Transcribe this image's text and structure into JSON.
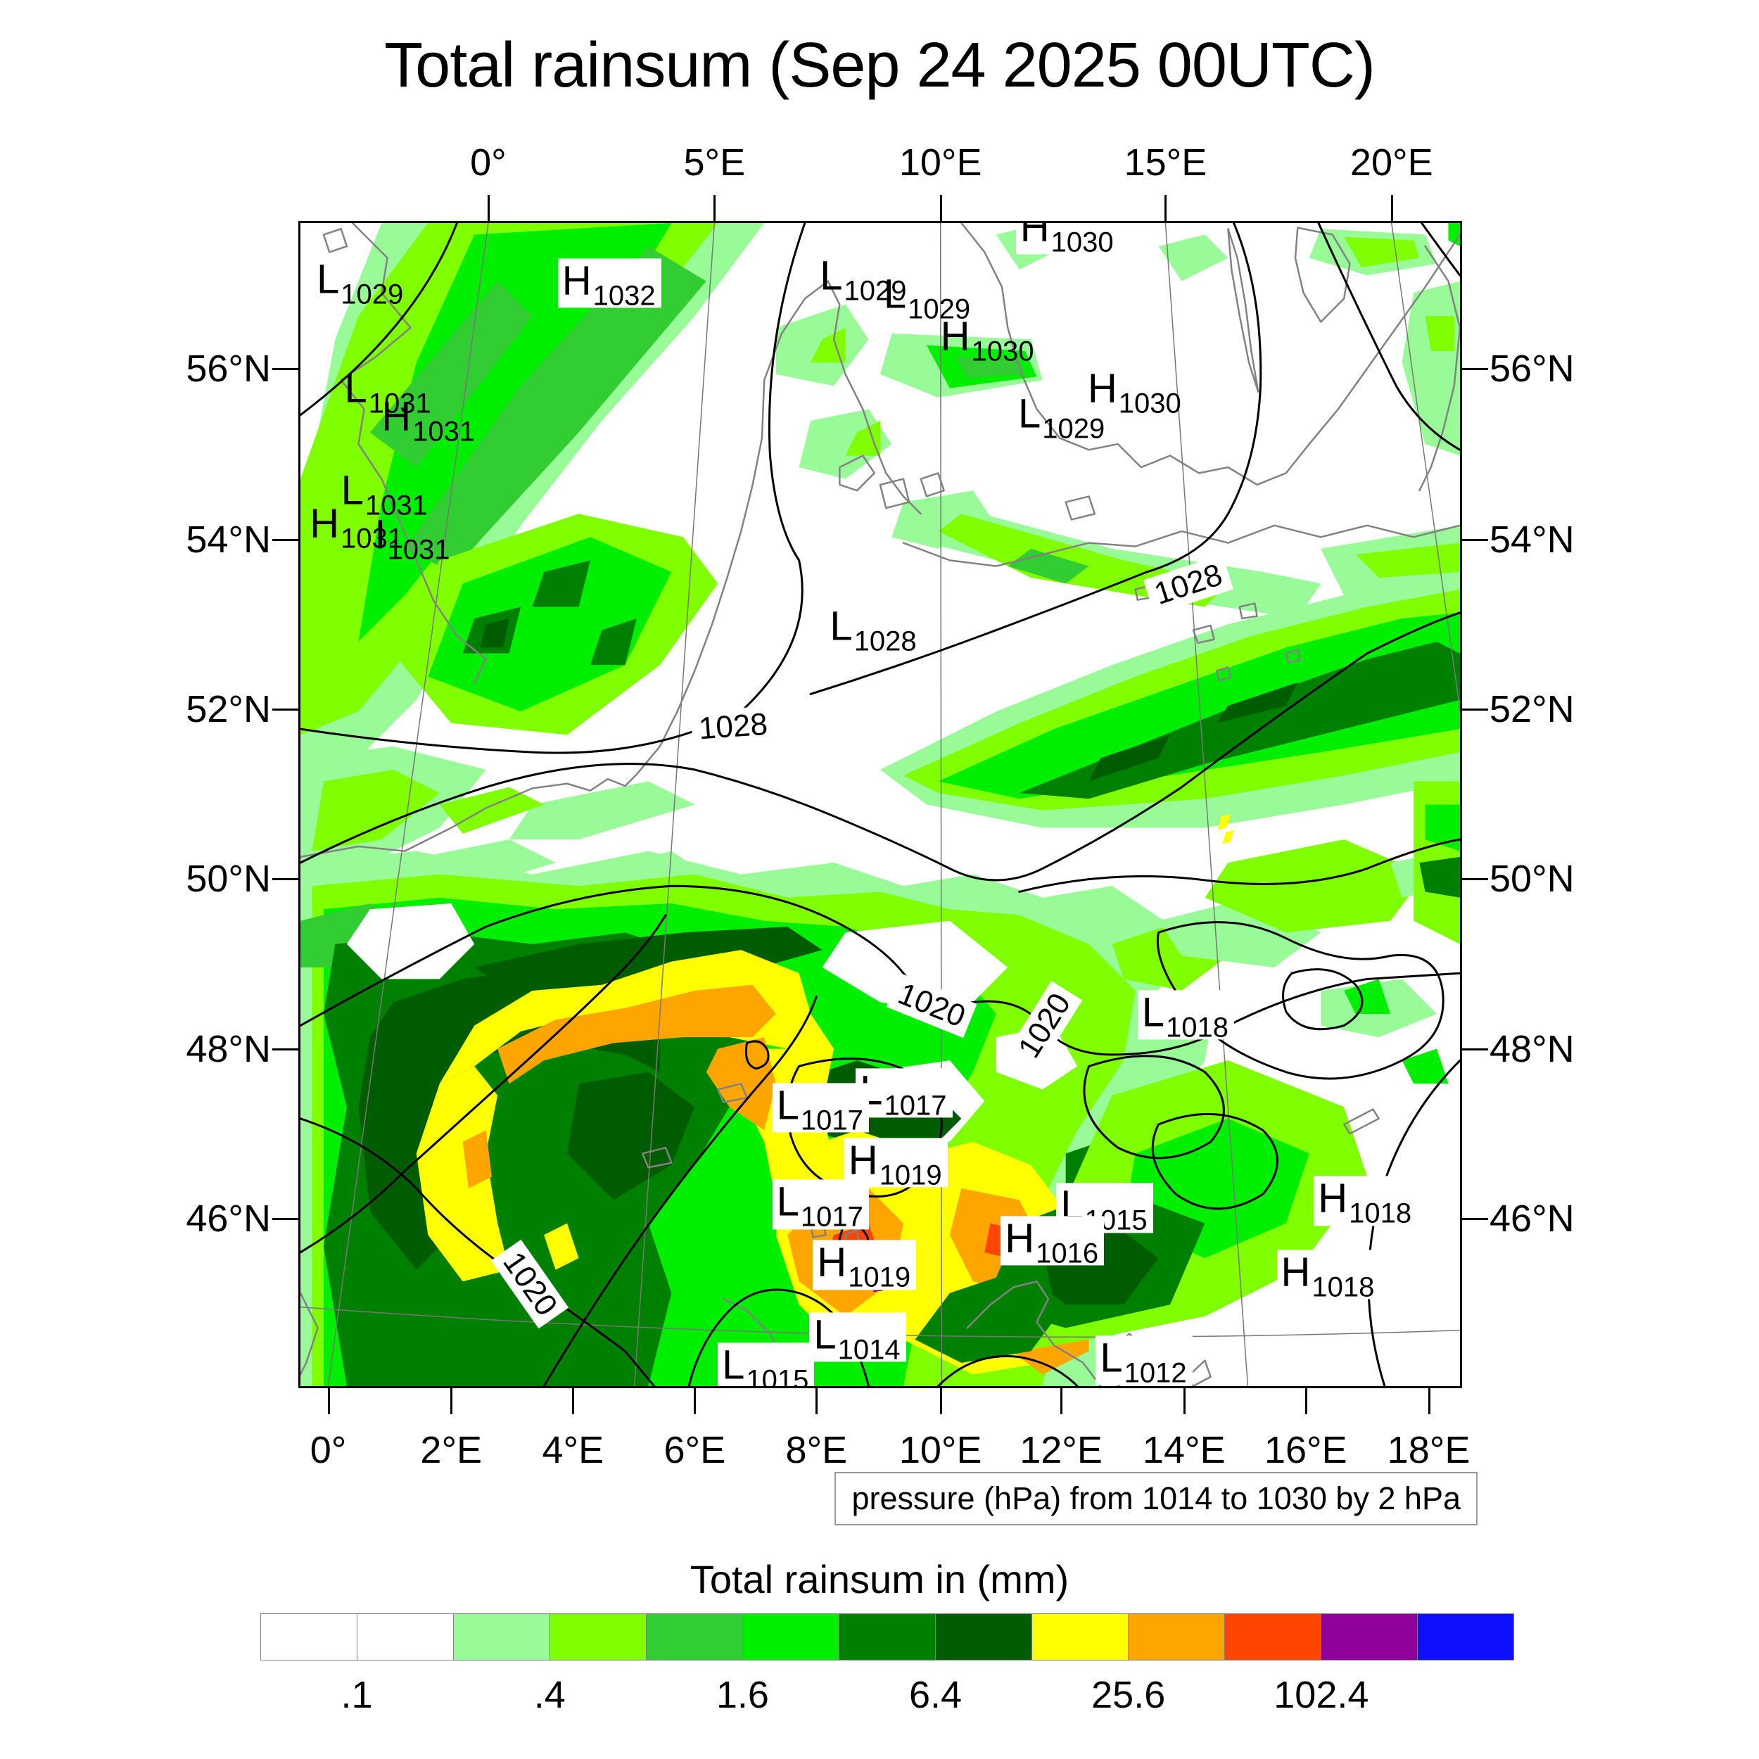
{
  "title": "Total rainsum (Sep 24 2025 00UTC)",
  "caption": "pressure (hPa) from 1014 to 1030 by 2 hPa",
  "legend": {
    "title": "Total rainsum in (mm)",
    "colors": [
      "#FFFFFF",
      "#FFFFFF",
      "#98FB98",
      "#7FFF00",
      "#32CD32",
      "#00EE00",
      "#008000",
      "#005C00",
      "#FFFF00",
      "#FFA500",
      "#FF4500",
      "#90009A",
      "#0F0FFF"
    ],
    "ticks": [
      {
        "label": ".1",
        "boundary": 1
      },
      {
        "label": ".4",
        "boundary": 3
      },
      {
        "label": "1.6",
        "boundary": 5
      },
      {
        "label": "6.4",
        "boundary": 7
      },
      {
        "label": "25.6",
        "boundary": 9
      },
      {
        "label": "102.4",
        "boundary": 11
      }
    ]
  },
  "axes": {
    "top": [
      {
        "label": "0°",
        "f": 16.2
      },
      {
        "label": "5°E",
        "f": 35.7
      },
      {
        "label": "10°E",
        "f": 55.2
      },
      {
        "label": "15°E",
        "f": 74.6
      },
      {
        "label": "20°E",
        "f": 94.1
      }
    ],
    "bottom": [
      {
        "label": "0°",
        "f": 2.4
      },
      {
        "label": "2°E",
        "f": 13.0
      },
      {
        "label": "4°E",
        "f": 23.5
      },
      {
        "label": "6°E",
        "f": 34.0
      },
      {
        "label": "8°E",
        "f": 44.5
      },
      {
        "label": "10°E",
        "f": 55.2
      },
      {
        "label": "12°E",
        "f": 65.6
      },
      {
        "label": "14°E",
        "f": 76.2
      },
      {
        "label": "16°E",
        "f": 86.7
      },
      {
        "label": "18°E",
        "f": 97.3
      }
    ],
    "left": [
      {
        "label": "56°N",
        "f": 12.5
      },
      {
        "label": "54°N",
        "f": 27.2
      },
      {
        "label": "52°N",
        "f": 41.8
      },
      {
        "label": "50°N",
        "f": 56.4
      },
      {
        "label": "48°N",
        "f": 71.0
      },
      {
        "label": "46°N",
        "f": 85.6
      }
    ],
    "right": [
      {
        "label": "56°N",
        "f": 12.5
      },
      {
        "label": "54°N",
        "f": 27.2
      },
      {
        "label": "52°N",
        "f": 41.8
      },
      {
        "label": "50°N",
        "f": 56.4
      },
      {
        "label": "48°N",
        "f": 71.0
      },
      {
        "label": "46°N",
        "f": 85.6
      }
    ]
  },
  "chart_data": {
    "type": "heatmap",
    "variable": "Total rainsum",
    "units": "mm",
    "valid_time": "Sep 24 2025 00UTC",
    "colorbar_thresholds_mm": [
      0.1,
      0.2,
      0.4,
      0.8,
      1.6,
      3.2,
      6.4,
      12.8,
      25.6,
      51.2,
      102.4,
      204.8
    ],
    "labeled_thresholds_mm": [
      0.1,
      0.4,
      1.6,
      6.4,
      25.6,
      102.4
    ],
    "pressure_overlay": {
      "units": "hPa",
      "from": 1014,
      "to": 1030,
      "step": 2
    },
    "lon_ticks_top": [
      "0°",
      "5°E",
      "10°E",
      "15°E",
      "20°E"
    ],
    "lon_ticks_bottom": [
      "0°",
      "2°E",
      "4°E",
      "6°E",
      "8°E",
      "10°E",
      "12°E",
      "14°E",
      "16°E",
      "18°E"
    ],
    "lat_ticks": [
      "56°N",
      "54°N",
      "52°N",
      "50°N",
      "48°N",
      "46°N"
    ],
    "pressure_centers": [
      {
        "t": "L",
        "v": "1029",
        "x": 2.0,
        "y": 5.0,
        "b": false
      },
      {
        "t": "H",
        "v": "1032",
        "x": 22.8,
        "y": 5.4,
        "b": true
      },
      {
        "t": "L",
        "v": "1031",
        "x": 4.4,
        "y": 14.4,
        "b": false
      },
      {
        "t": "H",
        "v": "1031",
        "x": 7.6,
        "y": 16.8,
        "b": false
      },
      {
        "t": "L",
        "v": "1031",
        "x": 4.1,
        "y": 23.2,
        "b": false
      },
      {
        "t": "H",
        "v": "1031",
        "x": 1.4,
        "y": 26.0,
        "b": false
      },
      {
        "t": "I",
        "v": "1031",
        "x": 7.0,
        "y": 27.0,
        "b": false
      },
      {
        "t": "L",
        "v": "1029",
        "x": 45.4,
        "y": 4.7,
        "b": false
      },
      {
        "t": "L",
        "v": "1029",
        "x": 50.9,
        "y": 6.3,
        "b": false
      },
      {
        "t": "H",
        "v": "1030",
        "x": 62.3,
        "y": 0.8,
        "b": true
      },
      {
        "t": "H",
        "v": "1030",
        "x": 55.8,
        "y": 9.9,
        "b": false
      },
      {
        "t": "H",
        "v": "1030",
        "x": 68.5,
        "y": 14.4,
        "b": false
      },
      {
        "t": "L",
        "v": "1029",
        "x": 62.5,
        "y": 16.6,
        "b": false
      },
      {
        "t": "L",
        "v": "1028",
        "x": 45.9,
        "y": 35.1,
        "b": true
      },
      {
        "t": "L",
        "v": "1018",
        "x": 72.8,
        "y": 68.3,
        "b": true
      },
      {
        "t": "L",
        "v": "1017",
        "x": 48.5,
        "y": 75.0,
        "b": true
      },
      {
        "t": "L",
        "v": "1017",
        "x": 41.3,
        "y": 76.3,
        "b": true
      },
      {
        "t": "H",
        "v": "1019",
        "x": 47.5,
        "y": 81.0,
        "b": true
      },
      {
        "t": "L",
        "v": "1017",
        "x": 41.3,
        "y": 84.6,
        "b": true
      },
      {
        "t": "L",
        "v": "1015",
        "x": 65.8,
        "y": 84.9,
        "b": true
      },
      {
        "t": "H",
        "v": "1016",
        "x": 61.0,
        "y": 87.7,
        "b": true
      },
      {
        "t": "H",
        "v": "1018",
        "x": 88.0,
        "y": 84.3,
        "b": true
      },
      {
        "t": "H",
        "v": "1018",
        "x": 84.8,
        "y": 90.6,
        "b": true
      },
      {
        "t": "H",
        "v": "1019",
        "x": 44.8,
        "y": 89.8,
        "b": true
      },
      {
        "t": "L",
        "v": "1014",
        "x": 44.5,
        "y": 96.0,
        "b": true
      },
      {
        "t": "L",
        "v": "1015",
        "x": 36.6,
        "y": 98.6,
        "b": true
      },
      {
        "t": "L",
        "v": "1012",
        "x": 69.2,
        "y": 98.0,
        "b": true
      }
    ],
    "contour_line_labels": [
      {
        "text": "1028",
        "x": 37.3,
        "y": 43.3,
        "rot": -4
      },
      {
        "text": "1028",
        "x": 76.6,
        "y": 31.1,
        "rot": -18
      },
      {
        "text": "1020",
        "x": 54.4,
        "y": 67.3,
        "rot": 22
      },
      {
        "text": "1020",
        "x": 64.2,
        "y": 69.0,
        "rot": -58
      },
      {
        "text": "1020",
        "x": 19.8,
        "y": 91.2,
        "rot": 55
      }
    ]
  },
  "map_geometry": {
    "graticule_meridians": [
      [
        16.2,
        0,
        2.4,
        100
      ],
      [
        35.7,
        0,
        28.8,
        100
      ],
      [
        55.2,
        0,
        55.3,
        100
      ],
      [
        74.6,
        0,
        81.7,
        100
      ],
      [
        94.1,
        0,
        108.2,
        100
      ]
    ],
    "graticule_parallels": [
      "M0,93.2 Q50,97 100,95.2"
    ],
    "coastlines": [
      "M4.5,0 L7.5,3 L7,6 L9.5,9 L6.5,11.5 L3.5,13.5 L5.5,16 L5,19 L7,22 L8.5,25.5 L10,29 L11.5,32.5 L13.5,35.5 L16,37.5 L15,39.5",
      "M2,1 L3.5,0.5 L4,2 L2.5,2.5 Z",
      "M0,54.5 L5,53.6 L9,54 L13,52 L16,50.3 L20,48.6 L23,48.2 L25,48.8 L26.5,47.8 L28,48.4 L29,47.4 L31,45 L32.5,42 L34,38.5 L35.5,34.5 L36.8,30.5 L38,26.5 L39,22.5 L39.8,18.5 L40,13.5 L41.5,9.5 L43.5,6.5 L45.5,5 L46.5,7 L46,10 L47,13 L48.5,16 L49.5,19 L50.5,21.5 L52,23.5 L53.5,25",
      "M52,27.5 L56,29 L60,29.5 L64,28.5 L68,27.5 L72,27.8 L76,26.5 L80,27.5 L84,26 L88,27 L92,26 L96,27 L100,26",
      "M57,0 L59,2.5 L60.5,5.5 L61,9 L62,12.5 L63.5,16 L65.5,18.5 L68,19.5 L70.5,19 L72.5,21 L75,20 L77.5,21.5 L80,21 L82.5,22.5 L85,21.5 L87,19 L89.5,16 L92,12.5 L94.5,9 L97,5.5 L99,2.5 L100,1",
      "M80,0.5 L80.8,3 L81.5,7 L82,11 L82.6,14.5 L81.8,12 L81,8 L80.3,4 Z",
      "M86,0.4 L89,1 L90.5,3.5 L90,6.5 L88,8.5 L86.5,6 L85.8,3 Z",
      "M97,2 L99,5 L100,9 L99.5,14 L98.5,18 L97.5,21 L96.5,23",
      "M46.5,21 L48.5,20 L49.5,21.5 L48,23 L46.5,22.5 Z",
      "M50,22.5 L52,22 L52.5,24 L50.5,24.5 Z",
      "M53.5,22 L55,21.5 L55.5,23 L54,23.5 Z",
      "M66,24 L68,23.5 L68.5,25 L66.5,25.5 Z",
      "M77,35 L78.5,34.6 L78.8,35.8 L77.4,36.1 Z",
      "M81,33 L82.3,32.7 L82.5,33.8 L81.2,34 Z",
      "M72,31.5 L73.2,31.2 L73.4,32.2 L72.2,32.4 Z",
      "M85,37 L86,36.7 L86.2,37.6 L85.2,37.8 Z",
      "M79,38.5 L80,38.2 L80.2,39.1 L79.2,39.3 Z",
      "M29.5,80 L31.5,79.5 L32,80.8 L30,81.2 Z",
      "M36,74.5 L38,74 L38.5,75.2 L36.5,75.6 Z",
      "M44,86 L45,85.5 L45.3,87 L44.2,87.2 Z",
      "M47,87 L48,86.6 L48.2,88 L47.1,88.2 Z",
      "M41.5,85 L42.5,84.6 L42.8,86 L41.8,86.2 Z",
      "M36.5,92.5 L38.5,93.5 L40.5,95.5 L41.5,97.5 L40.5,99 L38.5,100",
      "M57.5,95 L59.5,93 L61.5,91.5 L63.5,91 L64.5,92.5 L63.5,94.5 L65,96.5 L67.5,98 L69,100",
      "M69.5,97 L71.5,95.5 L73,97 L72,99 L70.5,100",
      "M73.5,98 L75.5,96.5 L76,98 L74.5,99.5 Z",
      "M76.5,99.2 L78,97.8 L78.5,99.2 L77,100 Z",
      "M90,77.5 L92.5,76.2 L93,77 L90.5,78.3 Z",
      "M0,92 L1.5,95 L0.5,98 L0,99"
    ],
    "contours": [
      "M13.5,0 Q10,9 0,16.5",
      "M43.5,0 Q40,10 40.5,20 Q41,26 43,29 Q44.5,36 38,42 Q30,46 20,45.5 Q10,45 0,43.5",
      "M44,40.5 Q52,38 60,35 Q68,32 73,30 Q78,28.5 80,25 Q82.5,20.5 82.8,14 Q83,6 80.5,0",
      "M87.8,0 Q91,7 94.5,14 Q96.5,17.5 100,19.5",
      "M96.7,0 Q98.5,2.5 100,4.5",
      "M0,55 Q8,51 16,48.5 Q26,45.5 34,47 Q40,48.5 46,51 Q52,53.5 56,55.5 Q60,57.5 64,55.5 Q70,52.5 76,48.5 Q84,42.5 92,37 Q97,34.5 100,33.5",
      "M62,57.5 Q70,55.5 78,56.5 Q86,57.5 92,55.5 Q97,53.5 100,53",
      "M0,69 Q8,64.5 16,60.5 Q24,57.5 32,57 Q40,57 46,60 Q50,62 52,64.5 Q54.5,67.5 58,67 Q62,66.5 64,69 Q66,71.5 70,71.5 Q76,71.5 80,69 Q86,66 92,65 L100,64.5",
      "M0,77 Q6,79 10,83 Q14,87.5 19.5,91 Q24,94 28,97 L30.5,100",
      "M0,88.5 Q5,85.5 9,81.5 Q14,77 19,72.5 Q24,68 27.5,64.5 Q30,62 31.5,59.5",
      "M21,100 Q24,95 27,90.5 Q30,86 33.5,81.5 Q37,77 40.5,73 Q43.5,69.5 44.5,66.5",
      "M74,61 Q80,59 85,61.5 Q90,64 94,63 Q98,62.5 98.5,66 Q99,70 95,72 Q90,74.5 85,73 Q79,71 76.5,67.5 Q73.5,63.5 74,61 Z",
      "M85.5,64.5 Q89,63.5 91,65.5 Q92.5,67.5 90,69 Q86.5,70 85,67.8 Q84.3,65.8 85.5,64.5 Z",
      "M68,72.5 Q74,70.5 78,73 Q81,76 78.5,79 Q74.5,81.5 70.5,79.5 Q66.5,76.5 68,72.5 Z",
      "M74,77.5 Q79,75.5 83,78 Q85.5,80.5 83,83.5 Q79,86 75.5,83.5 Q72.5,80.5 74,77.5 Z",
      "M43,72.5 Q49,70.8 53.5,73.5 Q56.5,76.5 54.5,80.5 Q52.5,84.5 48,83.5 Q43.5,82.5 42.3,78.5 Q41.5,75 43,72.5 Z",
      "M46.8,86.3 Q48.3,85.8 48.9,87.2 Q49.2,88.6 47.7,88.9 Q46.4,88.7 46.5,87.3 Z",
      "M38.5,70.5 Q39.8,70 40.3,71.2 Q40.6,72.4 39.3,72.7 Q38.2,72.4 38.5,70.5 Z",
      "M100,72 Q95,77 93,84 Q91,92 93.5,100",
      "M33.5,100 Q34.5,96 37,93.5 Q39.5,91 43,92 Q46,93 47.5,96 Q48.5,98 49,100",
      "M55,100 Q58,97 62,97.5 Q65,98 67,100"
    ],
    "rain_patches": [
      [
        2,
        "7,0 40,0 34,8 26,17 19,26 14,34 10,41 4,47 0,48 0,26 3,10"
      ],
      [
        3,
        "11,0 36,0 29,9 21,19 15,28 10,36 5,42 0,44 0,22 5,8"
      ],
      [
        5,
        "15,1 32,0 26,10 17,22 9,32 5,36 7,24 10,12"
      ],
      [
        4,
        "30,2 35,5 24,18 13,30 9,28 19,14"
      ],
      [
        4,
        "17,5 20,8 10,21 6,18"
      ],
      [
        2,
        "0,46 8,45 16,47 12,52 4,56 0,56"
      ],
      [
        3,
        "2,48 8,47 12,49 7,53 1,54"
      ],
      [
        2,
        "20,50 30,48 34,50 24,53 18,53"
      ],
      [
        2,
        "8,55 18,53 22,55 12,58 6,58"
      ],
      [
        2,
        "24,56 32,54 35,56 27,58 22,58"
      ],
      [
        3,
        "12,50 18,48.5 21,50 14,52.5"
      ],
      [
        3,
        "12,29 24,25 33,27 36,31 31,38 23,44 13,43 8,37"
      ],
      [
        5,
        "14,31 25,27 32,30 28,38 19,42 11,39"
      ],
      [
        6,
        "15,34 19,33 18,37 14,37"
      ],
      [
        6,
        "21,30 25,29 24,33 20,33"
      ],
      [
        6,
        "26,35 29,34 28,38 25,38"
      ],
      [
        7,
        "16,34.5 18,34 17.5,36.5 15.5,36.5"
      ],
      [
        2,
        "41,9 47,7 49,10 46,14 41,13"
      ],
      [
        2,
        "44,17 49,16 51,19 47,22 43,21"
      ],
      [
        2,
        "52,24 58,23 60,26 55,28 51,27"
      ],
      [
        3,
        "45,10 47,9 47,12 44,12"
      ],
      [
        3,
        "48,18 50,17 50,20 47,20"
      ],
      [
        2,
        "51,9.5 63,10 64,13.5 55,15 50,13"
      ],
      [
        5,
        "54,10.5 62.5,11 63.5,13.2 56,14.2"
      ],
      [
        4,
        "56.5,11.5 62,11.8 62.5,13 57.5,13.3"
      ],
      [
        2,
        "60,1 64,0 66,2 62,4"
      ],
      [
        2,
        "74,2 78,1 80,3 76,5"
      ],
      [
        2,
        "88,0.5 97,1 98,3.5 92,4.5 87,3"
      ],
      [
        3,
        "90,1.2 96,1.5 96.5,3 91.5,3.8"
      ],
      [
        2,
        "96,6 100,5 100,20 97,19 95,12"
      ],
      [
        3,
        "97,8 99.5,8 99.5,11 97.5,11"
      ],
      [
        5,
        "99,0 100,0 100,2 99,1.5"
      ],
      [
        2,
        "55,24 70,28 83,30 88,31 86,34 70,31.5 52,27"
      ],
      [
        3,
        "57,25 71,29 80,31 78,33 63,30.5 55,26.5"
      ],
      [
        4,
        "63,28 68,29.5 66,31 61,29.5"
      ],
      [
        2,
        "88,28 100,26 100,31 90,32"
      ],
      [
        3,
        "91,28.5 100,27.5 100,30 93,30.5"
      ],
      [
        2,
        "50,47 60,42 70,38 80,34.5 90,32 100,30 100,48 90,50 78,52 64,52 54,50"
      ],
      [
        3,
        "52,47.5 62,43 72,39 82,35.5 92,33 100,31.5 100,45.5 90,47.5 78,49.5 64,50.5 55,49"
      ],
      [
        5,
        "55,48 65,43.5 75,40 85,36.5 95,34 100,33.5 100,43.5 88,45.5 75,47.5 62,49.5"
      ],
      [
        6,
        "62,49 72,45 82,41 92,37.5 98,36 100,37 100,41 90,43.5 78,46.5 68,49.5"
      ],
      [
        7,
        "69,46 75,44 74,46 68,48"
      ],
      [
        7,
        "80,41.5 86,39.5 85,41.5 79,43"
      ],
      [
        8,
        "79.4,51 80.2,50.8 79.9,52 79.1,52.2"
      ],
      [
        8,
        "79.8,52.4 80.5,52.2 80.2,53.2 79.5,53.4"
      ],
      [
        2,
        "0,55 10,54 20,56 30,54 38,56 46,55 52,57 58,56 64,58 70,57 76,61 79,66 78,72 74,78 70,84 72,90 69,100 0,100"
      ],
      [
        3,
        "1,57 12,56 24,57 34,56 42,58 50,57.5 56,59 62,59.5 68,62 72,66 71,72 67,78 64,84 66,90 64,100 1,100"
      ],
      [
        5,
        "2,59 12,58 22,59 32,58.5 40,60 47,60.5 52,62 57,64.5 60,68 58,73 55,78 52,84 54,90 52,100 2,100"
      ],
      [
        4,
        "0,60 6,58.5 9,61 4,64 0,64"
      ],
      [
        6,
        "3,62 12,61 20,62 28,61 34,63 38,66 39,71 37,76 34,81 30,86 32,92 30,100 4,100 2,88 4,76 2,68"
      ],
      [
        0,
        "47,61 56,60 61,64 57,68 50,67 45,64"
      ],
      [
        0,
        "49,73 56,72 59,75.5 56,79 50,78 47,76"
      ],
      [
        0,
        "76,62 92,60 100,63 100,76 90,74 80,70 74,66"
      ],
      [
        0,
        "60,70 65,69 67,72.5 64,74.5 60,73"
      ],
      [
        0,
        "6,59 13,58.5 15,62 12,65 7,65 4,62"
      ],
      [
        7,
        "15,64 24,62 33,61 42,60.5 45,62.5 38,64.5 28,65.5 18,66"
      ],
      [
        7,
        "8,67 14,65 21,64 27,65.5 31,69 31,73 28,71.5 22,70.5 16,71.5 12,75 11,81 13,87 10,90 6,85 5,76 6,70"
      ],
      [
        7,
        "24,74 30,73 34,76 32,81 27,84 23,80"
      ],
      [
        7,
        "42,74 48,72 54,74 57,77 54,80 48,79 43,78"
      ],
      [
        7,
        "60,86 66,84 70,87 67,92 62,93 58,90"
      ],
      [
        8,
        "12,74 15,69 20,66 26,65.5 32,63.5 38,62.5 43,64.5 44,68 42,71 37,70 31,68.5 25,68 19,69.5 15,72.5"
      ],
      [
        8,
        "12,74 15,72.5 17,75 16,80 17,86 18,90 14,91 11,87 10,80"
      ],
      [
        8,
        "42,71 44,68 46,71 45,76 46,81 44,86 41,84 40,79 38,75 39,71"
      ],
      [
        9,
        "17,71 22,68.5 28,67.5 34,66 39,65.5 41,68 39,70 33,70 27,70.5 21,72 18,74"
      ],
      [
        9,
        "36,71 40,70 41,74 40,78 37,76 35,73"
      ],
      [
        9,
        "14,79 16,78 16.5,82 14.5,83"
      ],
      [
        8,
        "21,87 23,86 24,89 22,90"
      ],
      [
        8,
        "42,80 48,78 54,80 58,79 63,81 66,85 65,90 67,94 64,98 58,99 52,96 47,97 43,93 41,87"
      ],
      [
        9,
        "44,85 49,83 52,86 51,91 47,94 43,91 42,87"
      ],
      [
        9,
        "57,83 62,84 64,88 62,92 58,91 56,87"
      ],
      [
        9,
        "60,90 65,89 68,92 68,97 64,99 60,96 58,92"
      ],
      [
        10,
        "46,87 49,86 50,89 47,91 45,90"
      ],
      [
        10,
        "59.5,86 61.5,86.5 61,89 59,88.5"
      ],
      [
        10,
        "45,95 47,94.5 46.5,97 44.8,97"
      ],
      [
        11,
        "49.5,91 50.3,90.8 50.2,91.8 49.4,91.9"
      ],
      [
        6,
        "66,80 72,78 77,81 75,87 70,89 66,87"
      ],
      [
        7,
        "69,81 73,80 74,84 70,86 67,84"
      ],
      [
        3,
        "70,75 80,72 90,76 92,82 86,90 78,94 68,96 62,97 58,95 62,90 66,84"
      ],
      [
        5,
        "72,80 80,77 87,80 85,86 78,89 71,86"
      ],
      [
        6,
        "62,86 70,83 78,86 75,93 66,95 59,93"
      ],
      [
        7,
        "64,88 70,86 74,89 71,93 65,93"
      ],
      [
        6,
        "56,92 62,90 66,93 63,97 57,98 53,96"
      ],
      [
        3,
        "70,62 76,60 80,63 76,66 71,65"
      ],
      [
        2,
        "74,60 82,58 88,61 84,64 76,63"
      ],
      [
        2,
        "88,66 95,65 98,68 93,70 88,69"
      ],
      [
        3,
        "80,55 90,53 97,56 94,60 85,61 78,58"
      ],
      [
        2,
        "94,55 99,54 100,57 95,58"
      ],
      [
        5,
        "90,66 93,65 94,68 91,68"
      ],
      [
        5,
        "95,72 98,71 99,74 96,74"
      ],
      [
        3,
        "96,48 100,48 100,62 96,60"
      ],
      [
        5,
        "97,50 100,50 100,54 97,53"
      ],
      [
        6,
        "96.5,55 100,54.5 100,58 97,57.5"
      ]
    ]
  }
}
